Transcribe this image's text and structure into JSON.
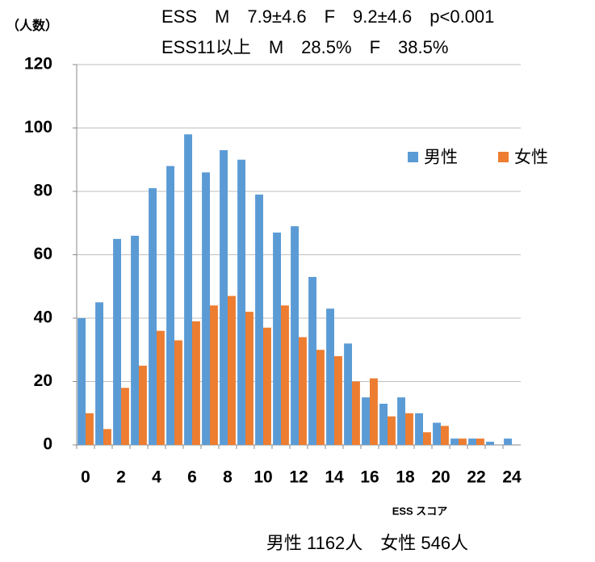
{
  "chart_data": {
    "type": "bar",
    "y_label": "（人数）",
    "annotations": [
      "ESS　M　7.9±4.6　F　9.2±4.6　p<0.001",
      "ESS11以上　M　28.5%　F　38.5%"
    ],
    "x_label": "ESS スコア",
    "note": "男性 1162人　女性 546人",
    "categories": [
      0,
      null,
      2,
      null,
      4,
      null,
      6,
      null,
      8,
      null,
      10,
      null,
      12,
      null,
      14,
      null,
      16,
      null,
      18,
      null,
      20,
      null,
      22,
      null,
      24
    ],
    "series": [
      {
        "name": "男性",
        "color": "#5b9bd5",
        "values": [
          40,
          45,
          65,
          66,
          81,
          88,
          98,
          86,
          93,
          90,
          79,
          67,
          69,
          53,
          43,
          32,
          15,
          13,
          15,
          10,
          7,
          2,
          2,
          1,
          2
        ]
      },
      {
        "name": "女性",
        "color": "#ed7d31",
        "values": [
          10,
          5,
          18,
          25,
          36,
          33,
          39,
          44,
          47,
          42,
          37,
          44,
          34,
          30,
          28,
          20,
          21,
          9,
          10,
          4,
          6,
          2,
          2,
          0,
          0
        ]
      }
    ],
    "ylim": [
      0,
      120
    ],
    "yticks": [
      0,
      20,
      40,
      60,
      80,
      100,
      120
    ],
    "grid": true,
    "legend": "right"
  }
}
